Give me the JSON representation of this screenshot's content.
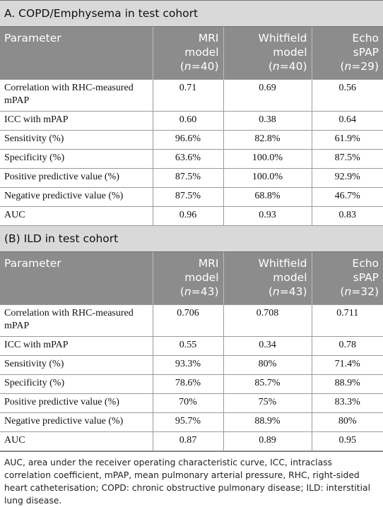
{
  "sections": [
    {
      "title": "A. COPD/Emphysema in test cohort",
      "header": {
        "param": "Parameter",
        "cols": [
          {
            "line1": "MRI",
            "line2": "model",
            "n_open": "(",
            "n_label": "n",
            "n_rest": "=40)"
          },
          {
            "line1": "Whitfield",
            "line2": "model",
            "n_open": "(",
            "n_label": "n",
            "n_rest": "=40)"
          },
          {
            "line1": "Echo",
            "line2": "sPAP",
            "n_open": "(",
            "n_label": "n",
            "n_rest": "=29)"
          }
        ]
      },
      "rows": [
        {
          "label": "Correlation with RHC-measured mPAP",
          "v": [
            "0.71",
            "0.69",
            "0.56"
          ]
        },
        {
          "label": "ICC with mPAP",
          "v": [
            "0.60",
            "0.38",
            "0.64"
          ]
        },
        {
          "label": "Sensitivity (%)",
          "v": [
            "96.6%",
            "82.8%",
            "61.9%"
          ]
        },
        {
          "label": "Specificity (%)",
          "v": [
            "63.6%",
            "100.0%",
            "87.5%"
          ]
        },
        {
          "label": "Positive predictive value (%)",
          "v": [
            "87.5%",
            "100.0%",
            "92.9%"
          ]
        },
        {
          "label": "Negative predictive value (%)",
          "v": [
            "87.5%",
            "68.8%",
            "46.7%"
          ]
        },
        {
          "label": "AUC",
          "v": [
            "0.96",
            "0.93",
            "0.83"
          ]
        }
      ]
    },
    {
      "title": "(B) ILD in test cohort",
      "header": {
        "param": "Parameter",
        "cols": [
          {
            "line1": "MRI",
            "line2": "model",
            "n_open": "(",
            "n_label": "n",
            "n_rest": "=43)"
          },
          {
            "line1": "Whitfield",
            "line2": "model",
            "n_open": "(",
            "n_label": "n",
            "n_rest": "=43)"
          },
          {
            "line1": "Echo",
            "line2": "sPAP",
            "n_open": "(",
            "n_label": "n",
            "n_rest": "=32)"
          }
        ]
      },
      "rows": [
        {
          "label": "Correlation with RHC-measured mPAP",
          "v": [
            "0.706",
            "0.708",
            "0.711"
          ]
        },
        {
          "label": "ICC with mPAP",
          "v": [
            "0.55",
            "0.34",
            "0.78"
          ]
        },
        {
          "label": "Sensitivity (%)",
          "v": [
            "93.3%",
            "80%",
            "71.4%"
          ]
        },
        {
          "label": "Specificity (%)",
          "v": [
            "78.6%",
            "85.7%",
            "88.9%"
          ]
        },
        {
          "label": "Positive predictive value (%)",
          "v": [
            "70%",
            "75%",
            "83.3%"
          ]
        },
        {
          "label": "Negative predictive value (%)",
          "v": [
            "95.7%",
            "88.9%",
            "80%"
          ]
        },
        {
          "label": "AUC",
          "v": [
            "0.87",
            "0.89",
            "0.95"
          ]
        }
      ]
    }
  ],
  "footnote": "AUC, area under the receiver operating characteristic curve, ICC, intraclass correlation coefficient, mPAP, mean pulmonary arterial pressure, RHC, right-sided heart catheterisation; COPD: chronic obstructive pulmonary disease; ILD: interstitial lung disease."
}
